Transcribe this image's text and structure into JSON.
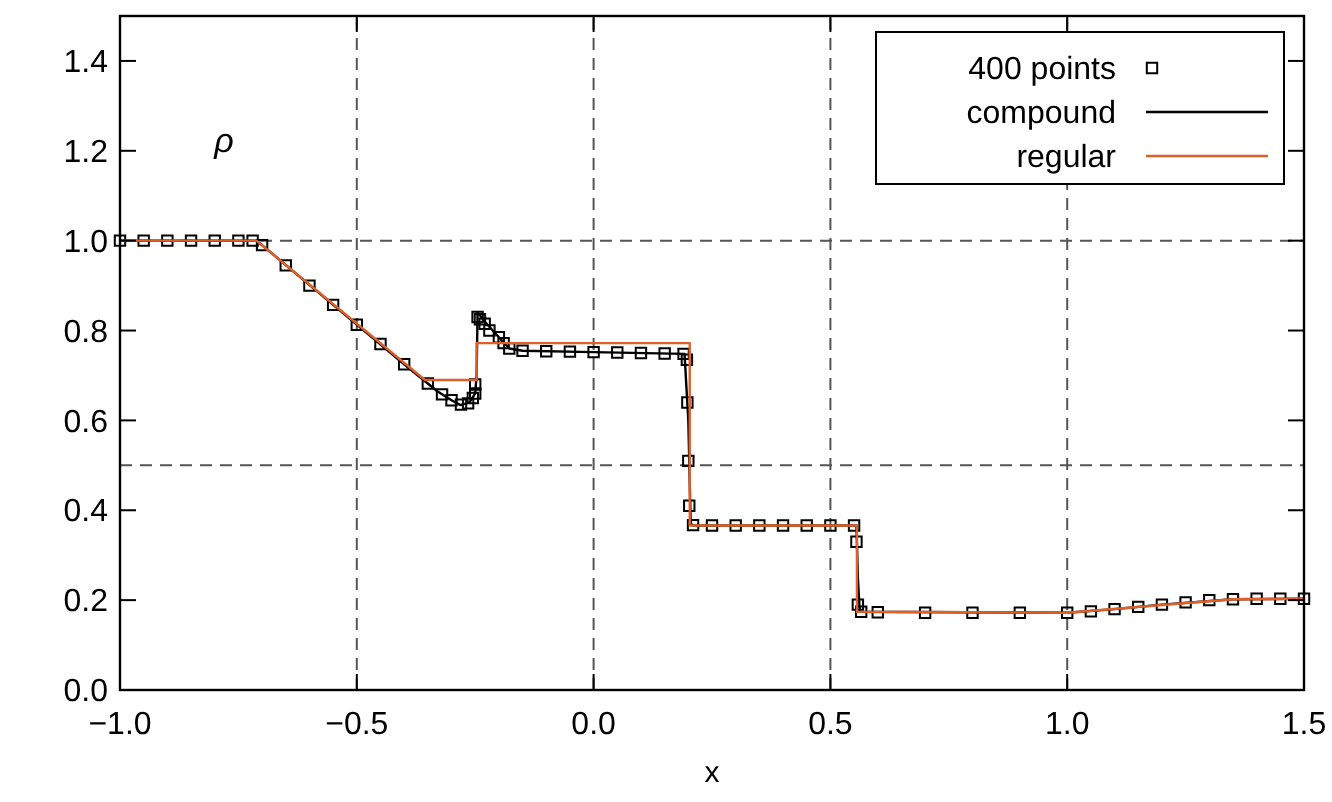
{
  "chart_data": {
    "type": "line",
    "xlabel": "x",
    "xlim": [
      -1,
      1.5
    ],
    "ylim": [
      0,
      1.5
    ],
    "xticks": [
      {
        "value": -1,
        "label": "−1.0"
      },
      {
        "value": -0.5,
        "label": "−0.5"
      },
      {
        "value": 0,
        "label": "0.0"
      },
      {
        "value": 0.5,
        "label": "0.5"
      },
      {
        "value": 1,
        "label": "1.0"
      },
      {
        "value": 1.5,
        "label": "1.5"
      }
    ],
    "yticks": [
      {
        "value": 0,
        "label": "0.0"
      },
      {
        "value": 0.2,
        "label": "0.2"
      },
      {
        "value": 0.4,
        "label": "0.4"
      },
      {
        "value": 0.6,
        "label": "0.6"
      },
      {
        "value": 0.8,
        "label": "0.8"
      },
      {
        "value": 1,
        "label": "1.0"
      },
      {
        "value": 1.2,
        "label": "1.2"
      },
      {
        "value": 1.4,
        "label": "1.4"
      }
    ],
    "grid": false,
    "legend": "top right",
    "annotations": [
      "ρ"
    ],
    "ref_lines": [
      {
        "axis": "x",
        "value": -0.5,
        "line_style": "dashed"
      },
      {
        "axis": "x",
        "value": 0,
        "line_style": "dashed"
      },
      {
        "axis": "x",
        "value": 0.5,
        "line_style": "dashed"
      },
      {
        "axis": "x",
        "value": 1,
        "line_style": "dashed"
      },
      {
        "axis": "y",
        "value": 0.5,
        "line_style": "dashed"
      },
      {
        "axis": "y",
        "value": 1,
        "line_style": "dashed"
      }
    ],
    "series": [
      {
        "name": "400 points",
        "type": "scatter",
        "marker": "square",
        "color": "#000000",
        "x": [
          -1,
          -0.95,
          -0.9,
          -0.85,
          -0.8,
          -0.75,
          -0.72,
          -0.7,
          -0.65,
          -0.6,
          -0.55,
          -0.5,
          -0.45,
          -0.4,
          -0.35,
          -0.32,
          -0.3,
          -0.28,
          -0.265,
          -0.255,
          -0.25,
          -0.25,
          -0.245,
          -0.24,
          -0.23,
          -0.22,
          -0.2,
          -0.19,
          -0.178,
          -0.15,
          -0.1,
          -0.05,
          0,
          0.05,
          0.1,
          0.15,
          0.19,
          0.197,
          0.198,
          0.2,
          0.202,
          0.21,
          0.25,
          0.3,
          0.35,
          0.4,
          0.45,
          0.5,
          0.55,
          0.555,
          0.558,
          0.565,
          0.6,
          0.7,
          0.8,
          0.9,
          1,
          1.05,
          1.1,
          1.15,
          1.2,
          1.25,
          1.3,
          1.35,
          1.4,
          1.45,
          1.5
        ],
        "values": [
          1,
          1,
          1,
          1,
          1,
          1,
          1,
          0.99,
          0.945,
          0.9,
          0.857,
          0.813,
          0.77,
          0.725,
          0.682,
          0.658,
          0.645,
          0.635,
          0.638,
          0.65,
          0.66,
          0.68,
          0.83,
          0.825,
          0.815,
          0.8,
          0.785,
          0.772,
          0.76,
          0.755,
          0.754,
          0.753,
          0.752,
          0.751,
          0.75,
          0.749,
          0.748,
          0.735,
          0.64,
          0.51,
          0.41,
          0.367,
          0.366,
          0.366,
          0.366,
          0.366,
          0.366,
          0.366,
          0.366,
          0.33,
          0.19,
          0.174,
          0.173,
          0.172,
          0.172,
          0.172,
          0.172,
          0.175,
          0.18,
          0.185,
          0.19,
          0.195,
          0.2,
          0.202,
          0.203,
          0.203,
          0.203
        ]
      },
      {
        "name": "compound",
        "type": "line",
        "color": "#000000",
        "x": [
          -1,
          -0.712,
          -0.7,
          -0.4,
          -0.33,
          -0.3,
          -0.281,
          -0.262,
          -0.25,
          -0.247,
          -0.245,
          -0.23,
          -0.2,
          -0.178,
          -0.15,
          0,
          0.192,
          0.2,
          0.205,
          0.21,
          0.555,
          0.558,
          0.562,
          1,
          1.1,
          1.2,
          1.35,
          1.5
        ],
        "values": [
          1,
          1,
          0.99,
          0.725,
          0.665,
          0.645,
          0.634,
          0.64,
          0.66,
          0.7,
          0.841,
          0.82,
          0.785,
          0.76,
          0.755,
          0.752,
          0.748,
          0.6,
          0.37,
          0.366,
          0.366,
          0.25,
          0.174,
          0.172,
          0.18,
          0.19,
          0.202,
          0.203
        ]
      },
      {
        "name": "regular",
        "type": "line",
        "color": "#e0602a",
        "x": [
          -1,
          -0.712,
          -0.356,
          -0.247,
          -0.247,
          0.203,
          0.203,
          0.556,
          0.556,
          1,
          1.35,
          1.5
        ],
        "values": [
          1,
          1,
          0.69,
          0.69,
          0.772,
          0.772,
          0.366,
          0.366,
          0.174,
          0.172,
          0.202,
          0.203
        ]
      }
    ]
  }
}
